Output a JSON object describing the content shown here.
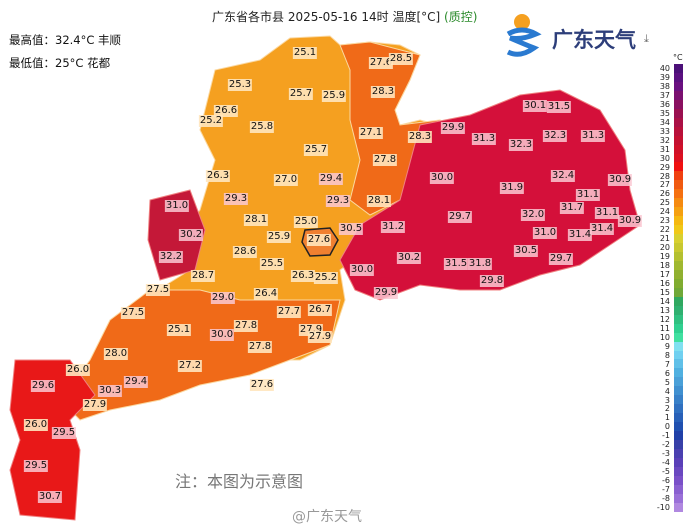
{
  "header": {
    "title": "广东省各市县 2025-05-16 14时 温度[°C] ",
    "title_qc": "(质控)",
    "max": "最高值：32.4°C 丰顺",
    "min": "最低值：25°C 花都"
  },
  "logo": {
    "text": "广东天气",
    "icon": "download-icon"
  },
  "note": "注：本图为示意图",
  "watermark": "@广东天气",
  "legend": {
    "unit": "°C",
    "ticks": [
      "40",
      "39",
      "38",
      "37",
      "36",
      "35",
      "34",
      "33",
      "32",
      "31",
      "30",
      "29",
      "28",
      "27",
      "26",
      "25",
      "24",
      "23",
      "22",
      "21",
      "20",
      "19",
      "18",
      "17",
      "16",
      "15",
      "14",
      "13",
      "12",
      "11",
      "10",
      "9",
      "8",
      "7",
      "6",
      "5",
      "4",
      "3",
      "2",
      "1",
      "0",
      "-1",
      "-2",
      "-3",
      "-4",
      "-5",
      "-6",
      "-7",
      "-8",
      "-10"
    ],
    "colors": [
      "#4b1078",
      "#5a1080",
      "#6a1080",
      "#7a1070",
      "#8a1060",
      "#9a1050",
      "#aa1045",
      "#b8103a",
      "#c41030",
      "#d01028",
      "#dc1020",
      "#f01010",
      "#f04010",
      "#f05a10",
      "#f57010",
      "#f58a10",
      "#f5a010",
      "#f5b810",
      "#f0c818",
      "#d8d030",
      "#c8c830",
      "#b4c030",
      "#a0b830",
      "#90b030",
      "#80ac30",
      "#70a838",
      "#30a860",
      "#30b070",
      "#30c080",
      "#30d090",
      "#40e0a0",
      "#80e0f0",
      "#70d0f0",
      "#60c0e8",
      "#50b0e0",
      "#4aa0d8",
      "#4090d0",
      "#3880c8",
      "#3070c0",
      "#2860b8",
      "#2050b0",
      "#2040a8",
      "#3840a8",
      "#4a40b0",
      "#5a40b8",
      "#6a48c0",
      "#7a50c8",
      "#8a60d0",
      "#9a70d8",
      "#b088e0"
    ]
  },
  "stations": [
    "25.1",
    "27.6",
    "28.5",
    "25.3",
    "25.7",
    "25.9",
    "28.3",
    "26.6",
    "25.2",
    "25.8",
    "27.1",
    "28.3",
    "25.7",
    "27.8",
    "26.3",
    "27.0",
    "29.4",
    "29.3",
    "29.3",
    "28.1",
    "31.0",
    "28.1",
    "25.0",
    "30.5",
    "31.2",
    "30.2",
    "25.9",
    "27.6",
    "32.2",
    "28.6",
    "25.5",
    "28.7",
    "26.3",
    "25.2",
    "30.0",
    "30.2",
    "30.1",
    "31.5",
    "29.9",
    "31.3",
    "32.3",
    "31.3",
    "32.3",
    "30.0",
    "32.4",
    "30.9",
    "31.9",
    "31.1",
    "29.7",
    "31.7",
    "31.1",
    "32.0",
    "30.9",
    "31.4",
    "31.0",
    "31.4",
    "30.5",
    "29.7",
    "31.5",
    "31.8",
    "29.8",
    "29.9",
    "27.5",
    "27.5",
    "29.0",
    "26.4",
    "25.1",
    "27.8",
    "30.0",
    "27.7",
    "26.7",
    "27.9",
    "27.9",
    "27.8",
    "28.0",
    "27.2",
    "26.0",
    "29.6",
    "30.3",
    "29.4",
    "27.9",
    "27.6",
    "26.0",
    "29.5",
    "29.5",
    "30.7"
  ]
}
